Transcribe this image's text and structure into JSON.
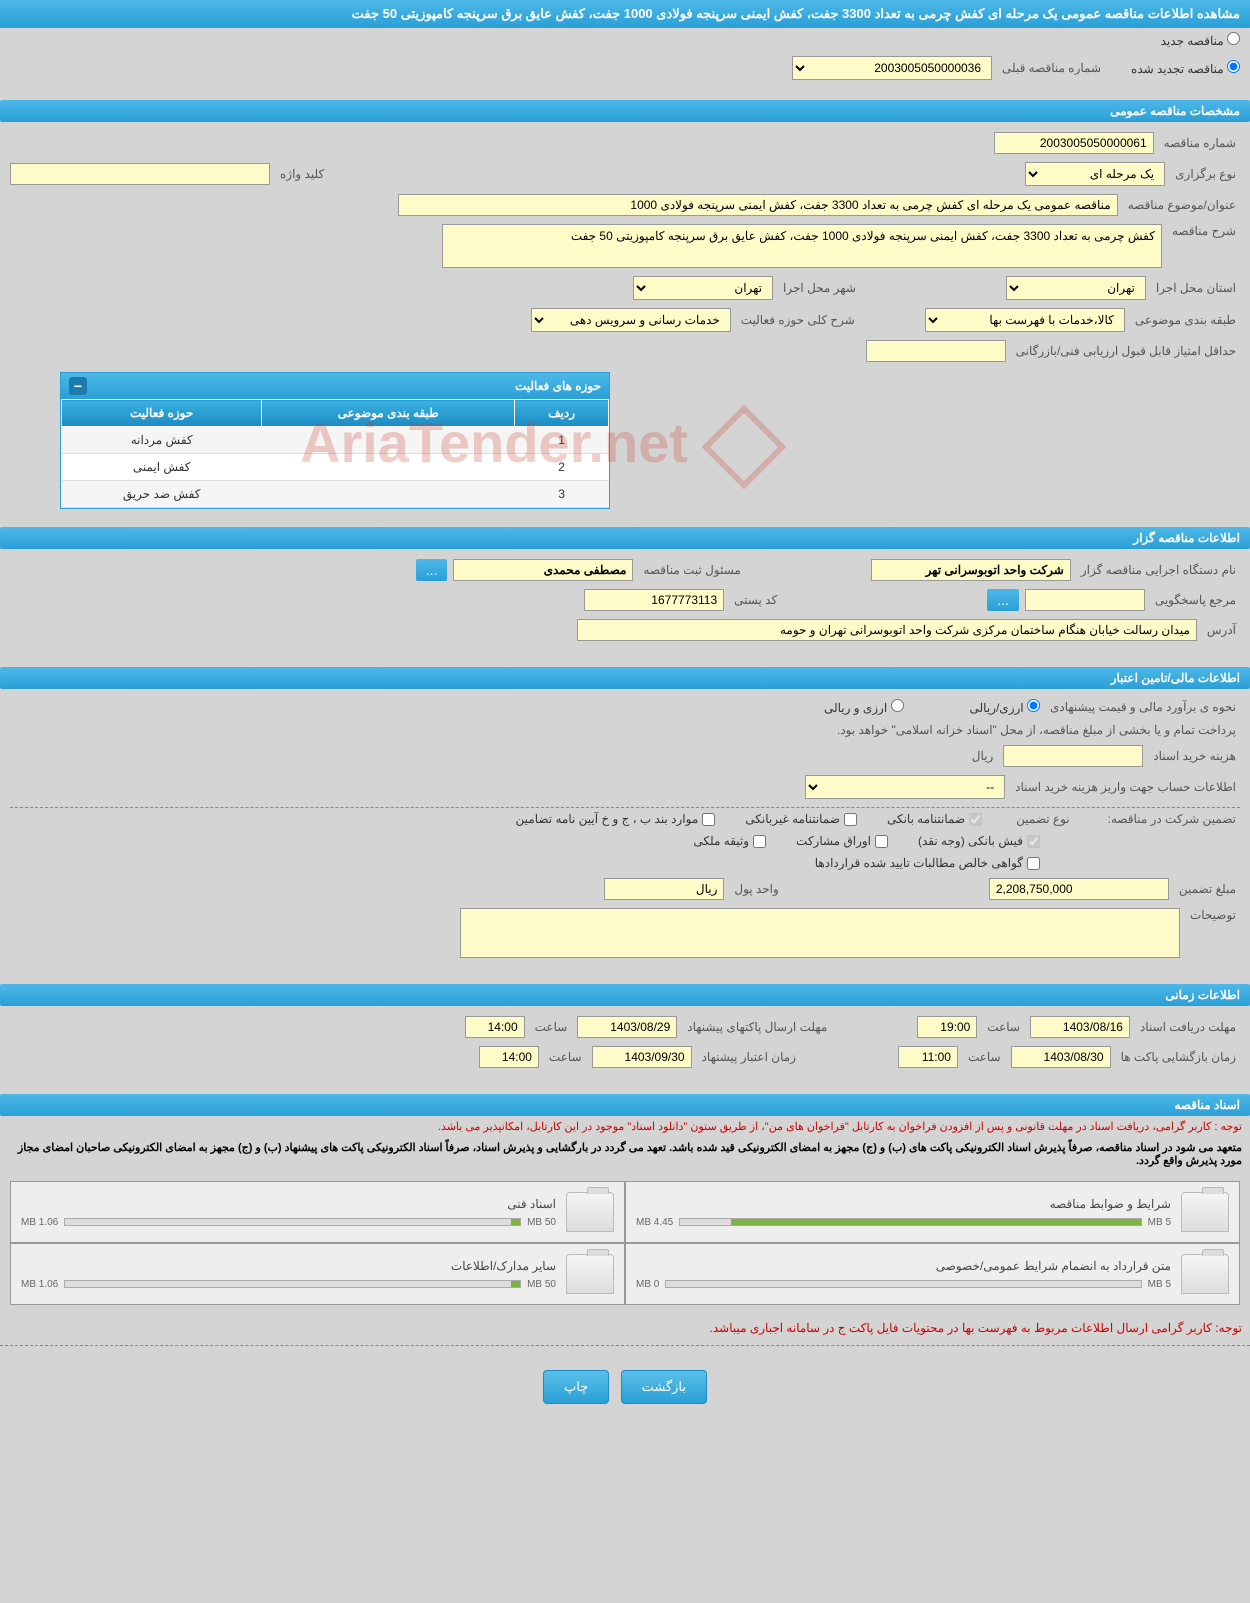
{
  "title": "مشاهده اطلاعات مناقصه عمومی یک مرحله ای کفش چرمی به تعداد 3300 جفت، کفش ایمنی سرپنجه فولادی 1000 جفت، کفش عایق برق سرپنجه کامپوزیتی 50 جفت",
  "radio_new": "مناقصه جدید",
  "radio_renewed": "مناقصه تجدید شده",
  "prev_number_label": "شماره مناقصه قبلی",
  "prev_number": "2003005050000036",
  "sections": {
    "general": "مشخصات مناقصه عمومی",
    "organizer": "اطلاعات مناقصه گزار",
    "financial": "اطلاعات مالی/تامین اعتبار",
    "time": "اطلاعات زمانی",
    "docs": "اسناد مناقصه"
  },
  "fields": {
    "tender_number_label": "شماره مناقصه",
    "tender_number": "2003005050000061",
    "type_label": "نوع برگزاری",
    "type_value": "یک مرحله ای",
    "keyword_label": "کلید واژه",
    "subject_label": "عنوان/موضوع مناقصه",
    "subject_value": "مناقصه عمومی یک مرحله ای کفش چرمی به تعداد 3300 جفت، کفش ایمنی سرپنجه فولادی 1000",
    "desc_label": "شرح مناقصه",
    "desc_value": "کفش چرمی به تعداد 3300 جفت، کفش ایمنی سرپنجه فولادی 1000 جفت، کفش عایق برق سرپنجه کامپوزیتی 50 جفت",
    "province_label": "استان محل اجرا",
    "province_value": "تهران",
    "city_label": "شهر محل اجرا",
    "city_value": "تهران",
    "category_label": "طبقه بندی موضوعی",
    "category_value": "کالا،خدمات با فهرست بها",
    "activity_desc_label": "شرح کلی حوزه فعالیت",
    "activity_desc_value": "خدمات رسانی و سرویس دهی",
    "min_score_label": "حداقل امتیاز قابل قبول ارزیابی فنی/بازرگانی"
  },
  "activity_table": {
    "title": "حوزه های فعالیت",
    "headers": [
      "ردیف",
      "طبقه بندی موضوعی",
      "حوزه فعالیت"
    ],
    "rows": [
      [
        "1",
        "",
        "کفش مردانه"
      ],
      [
        "2",
        "",
        "کفش ایمنی"
      ],
      [
        "3",
        "",
        "کفش ضد حریق"
      ]
    ]
  },
  "organizer": {
    "org_label": "نام دستگاه اجرایی مناقصه گزار",
    "org_value": "شرکت واحد اتوبوسرانی تهر",
    "registrar_label": "مسئول ثبت مناقصه",
    "registrar_value": "مصطفی محمدی",
    "response_label": "مرجع پاسخگویی",
    "postal_label": "کد پستی",
    "postal_value": "1677773113",
    "address_label": "آدرس",
    "address_value": "میدان رسالت خیابان هنگام ساختمان مرکزی شرکت واحد اتوبوسرانی تهران و حومه"
  },
  "financial": {
    "estimate_label": "نحوه ی برآورد مالی و قیمت پیشنهادی",
    "radio_rial": "ارزی/ریالی",
    "radio_both": "ارزی و ریالی",
    "payment_note": "پرداخت تمام و یا بخشی از مبلغ مناقصه، از محل \"اسناد خزانه اسلامی\" خواهد بود.",
    "doc_cost_label": "هزینه خرید اسناد",
    "rial": "ریال",
    "account_label": "اطلاعات حساب جهت واریز هزینه خرید اسناد",
    "account_value": "--",
    "guarantee_label": "تضمین شرکت در مناقصه:",
    "guarantee_type": "نوع تضمین",
    "chk_bank": "ضمانتنامه بانکی",
    "chk_nonbank": "ضمانتنامه غیربانکی",
    "chk_bylaw": "موارد بند ب ، ج و خ آیین نامه تضامین",
    "chk_fish": "فیش بانکی (وجه نقد)",
    "chk_shares": "اوراق مشارکت",
    "chk_property": "وثیقه ملکی",
    "chk_receivables": "گواهی خالص مطالبات تایید شده قراردادها",
    "amount_label": "مبلغ تضمین",
    "amount_value": "2,208,750,000",
    "currency_label": "واحد پول",
    "currency_value": "ریال",
    "notes_label": "توضیحات"
  },
  "time": {
    "receive_label": "مهلت دریافت اسناد",
    "receive_date": "1403/08/16",
    "receive_time": "19:00",
    "submit_label": "مهلت ارسال پاکتهای پیشنهاد",
    "submit_date": "1403/08/29",
    "submit_time": "14:00",
    "open_label": "زمان بازگشایی پاکت ها",
    "open_date": "1403/08/30",
    "open_time": "11:00",
    "validity_label": "زمان اعتبار پیشنهاد",
    "validity_date": "1403/09/30",
    "validity_time": "14:00",
    "hour_label": "ساعت"
  },
  "docs": {
    "note1": "توجه : کاربر گرامی، دریافت اسناد در مهلت قانونی و پس از افزودن فراخوان به کارتابل \"فراخوان های من\"، از طریق ستون \"دانلود اسناد\" موجود در این کارتابل، امکانپذیر می باشد.",
    "note2": "متعهد می شود در اسناد مناقصه، صرفاً پذیرش اسناد الکترونیکی پاکت های (ب) و (ج) مجهز به امضای الکترونیکی قید شده باشد. تعهد می گردد در بارگشایی و پذیرش اسناد، صرفاً اسناد الکترونیکی پاکت های پیشنهاد (ب) و (ج) مجهز به امضای الکترونیکی صاحبان امضای مجاز مورد پذیرش واقع گردد.",
    "files": [
      {
        "name": "شرایط و ضوابط مناقصه",
        "used": "4.45 MB",
        "total": "5 MB",
        "pct": 89
      },
      {
        "name": "اسناد فنی",
        "used": "1.06 MB",
        "total": "50 MB",
        "pct": 2
      },
      {
        "name": "متن قرارداد به انضمام شرایط عمومی/خصوصی",
        "used": "0 MB",
        "total": "5 MB",
        "pct": 0
      },
      {
        "name": "سایر مدارک/اطلاعات",
        "used": "1.06 MB",
        "total": "50 MB",
        "pct": 2
      }
    ],
    "note3": "توجه: کاربر گرامی ارسال اطلاعات مربوط به فهرست بها در محتویات فایل پاکت ج در سامانه اجباری میباشد."
  },
  "buttons": {
    "back": "بازگشت",
    "print": "چاپ",
    "more": "..."
  },
  "watermark": "AriaTender.net"
}
